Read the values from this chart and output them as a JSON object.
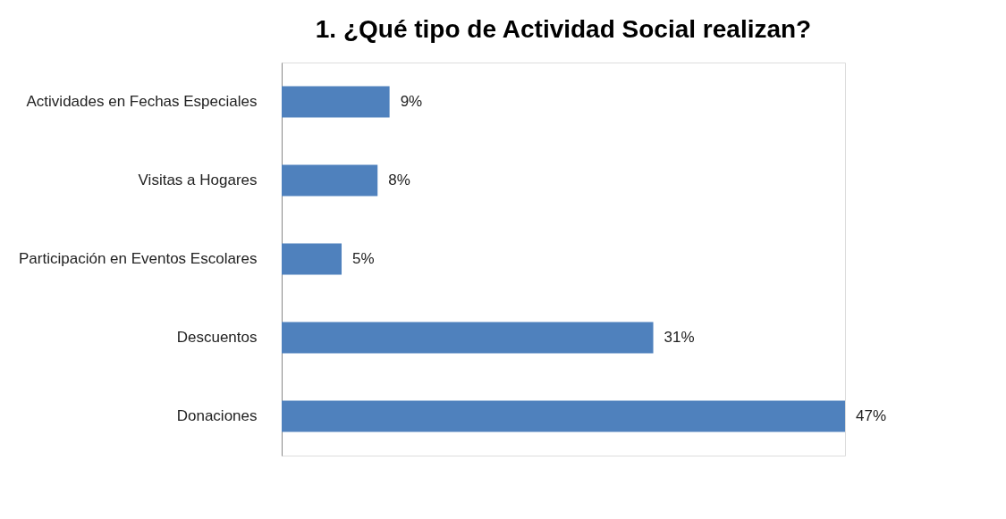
{
  "chart_data": {
    "type": "bar",
    "orientation": "horizontal",
    "title": "1. ¿Qué tipo de Actividad Social realizan?",
    "categories": [
      "Actividades en Fechas Especiales",
      "Visitas a Hogares",
      "Participación en Eventos Escolares",
      "Descuentos",
      "Donaciones"
    ],
    "values": [
      9,
      8,
      5,
      31,
      47
    ],
    "value_labels": [
      "9%",
      "8%",
      "5%",
      "31%",
      "47%"
    ],
    "color": "#4f81bd"
  }
}
